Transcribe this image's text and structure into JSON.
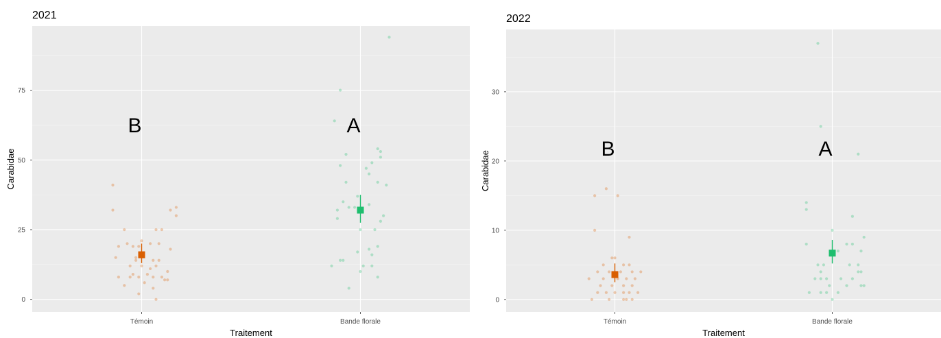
{
  "chart_data": [
    {
      "type": "scatter",
      "title": "2021",
      "xlabel": "Traitement",
      "ylabel": "Carabidae",
      "categories": [
        "Témoin",
        "Bande florale"
      ],
      "ylim": [
        -4.5,
        98
      ],
      "yticks": [
        0,
        25,
        50,
        75
      ],
      "grid": true,
      "series": [
        {
          "category": "Témoin",
          "color": "#d95f02",
          "mean": 16,
          "error": [
            13,
            20
          ],
          "significance": "B",
          "points": [
            {
              "x": -0.1,
              "y": 41
            },
            {
              "x": -0.1,
              "y": 32
            },
            {
              "x": -0.06,
              "y": 25
            },
            {
              "x": 0.05,
              "y": 25
            },
            {
              "x": 0.07,
              "y": 25
            },
            {
              "x": 0.1,
              "y": 32
            },
            {
              "x": 0.12,
              "y": 33
            },
            {
              "x": 0.12,
              "y": 30
            },
            {
              "x": -0.08,
              "y": 19
            },
            {
              "x": -0.05,
              "y": 20
            },
            {
              "x": -0.03,
              "y": 19
            },
            {
              "x": -0.01,
              "y": 19
            },
            {
              "x": 0.0,
              "y": 21
            },
            {
              "x": 0.03,
              "y": 20
            },
            {
              "x": 0.06,
              "y": 20
            },
            {
              "x": 0.1,
              "y": 18
            },
            {
              "x": -0.09,
              "y": 15
            },
            {
              "x": -0.02,
              "y": 15
            },
            {
              "x": 0.04,
              "y": 14
            },
            {
              "x": 0.06,
              "y": 14
            },
            {
              "x": -0.04,
              "y": 12
            },
            {
              "x": 0.0,
              "y": 12
            },
            {
              "x": 0.05,
              "y": 12
            },
            {
              "x": 0.09,
              "y": 10
            },
            {
              "x": -0.08,
              "y": 8
            },
            {
              "x": -0.03,
              "y": 9
            },
            {
              "x": -0.01,
              "y": 8
            },
            {
              "x": 0.02,
              "y": 9
            },
            {
              "x": 0.04,
              "y": 8
            },
            {
              "x": 0.07,
              "y": 8
            },
            {
              "x": 0.09,
              "y": 7
            },
            {
              "x": -0.06,
              "y": 5
            },
            {
              "x": 0.01,
              "y": 6
            },
            {
              "x": 0.04,
              "y": 4
            },
            {
              "x": -0.01,
              "y": 2
            },
            {
              "x": 0.05,
              "y": 0
            },
            {
              "x": -0.04,
              "y": 8
            },
            {
              "x": 0.03,
              "y": 11
            },
            {
              "x": -0.02,
              "y": 14
            },
            {
              "x": 0.08,
              "y": 7
            }
          ]
        },
        {
          "category": "Bande florale",
          "color": "#1ebe6e",
          "mean": 32,
          "error": [
            27.5,
            37.5
          ],
          "significance": "A",
          "points": [
            {
              "x": 0.1,
              "y": 94
            },
            {
              "x": -0.07,
              "y": 75
            },
            {
              "x": -0.09,
              "y": 64
            },
            {
              "x": 0.06,
              "y": 54
            },
            {
              "x": 0.07,
              "y": 53
            },
            {
              "x": -0.05,
              "y": 52
            },
            {
              "x": 0.07,
              "y": 51
            },
            {
              "x": 0.04,
              "y": 49
            },
            {
              "x": 0.02,
              "y": 47
            },
            {
              "x": -0.07,
              "y": 48
            },
            {
              "x": 0.03,
              "y": 45
            },
            {
              "x": -0.05,
              "y": 42
            },
            {
              "x": 0.06,
              "y": 42
            },
            {
              "x": 0.09,
              "y": 41
            },
            {
              "x": -0.01,
              "y": 37
            },
            {
              "x": 0.03,
              "y": 34
            },
            {
              "x": -0.06,
              "y": 35
            },
            {
              "x": -0.08,
              "y": 32
            },
            {
              "x": -0.02,
              "y": 33
            },
            {
              "x": -0.04,
              "y": 33
            },
            {
              "x": 0.08,
              "y": 30
            },
            {
              "x": 0.07,
              "y": 28
            },
            {
              "x": -0.08,
              "y": 29
            },
            {
              "x": 0.05,
              "y": 25
            },
            {
              "x": 0.0,
              "y": 25
            },
            {
              "x": 0.06,
              "y": 19
            },
            {
              "x": 0.03,
              "y": 18
            },
            {
              "x": -0.01,
              "y": 17
            },
            {
              "x": 0.04,
              "y": 16
            },
            {
              "x": -0.06,
              "y": 14
            },
            {
              "x": -0.07,
              "y": 14
            },
            {
              "x": -0.1,
              "y": 12
            },
            {
              "x": 0.01,
              "y": 12
            },
            {
              "x": 0.04,
              "y": 12
            },
            {
              "x": 0.0,
              "y": 10
            },
            {
              "x": 0.06,
              "y": 8
            },
            {
              "x": -0.04,
              "y": 4
            }
          ]
        }
      ]
    },
    {
      "type": "scatter",
      "title": "2022",
      "xlabel": "Traitement",
      "ylabel": "Carabidae",
      "categories": [
        "Témoin",
        "Bande florale"
      ],
      "ylim": [
        -1.8,
        39
      ],
      "yticks": [
        0,
        10,
        20,
        30
      ],
      "grid": true,
      "series": [
        {
          "category": "Témoin",
          "color": "#d95f02",
          "mean": 3.6,
          "error": [
            2.5,
            5.2
          ],
          "significance": "B",
          "points": [
            {
              "x": -0.03,
              "y": 16
            },
            {
              "x": -0.07,
              "y": 15
            },
            {
              "x": 0.01,
              "y": 15
            },
            {
              "x": -0.07,
              "y": 10
            },
            {
              "x": 0.05,
              "y": 9
            },
            {
              "x": -0.01,
              "y": 6
            },
            {
              "x": 0.0,
              "y": 6
            },
            {
              "x": -0.04,
              "y": 5
            },
            {
              "x": 0.03,
              "y": 5
            },
            {
              "x": 0.05,
              "y": 5
            },
            {
              "x": -0.06,
              "y": 4
            },
            {
              "x": -0.02,
              "y": 4
            },
            {
              "x": 0.02,
              "y": 4
            },
            {
              "x": 0.06,
              "y": 4
            },
            {
              "x": 0.09,
              "y": 4
            },
            {
              "x": -0.09,
              "y": 3
            },
            {
              "x": -0.04,
              "y": 3
            },
            {
              "x": 0.01,
              "y": 3
            },
            {
              "x": 0.04,
              "y": 3
            },
            {
              "x": 0.07,
              "y": 3
            },
            {
              "x": -0.05,
              "y": 2
            },
            {
              "x": -0.01,
              "y": 2
            },
            {
              "x": 0.03,
              "y": 2
            },
            {
              "x": 0.06,
              "y": 2
            },
            {
              "x": -0.06,
              "y": 1
            },
            {
              "x": -0.03,
              "y": 1
            },
            {
              "x": 0.0,
              "y": 1
            },
            {
              "x": 0.03,
              "y": 1
            },
            {
              "x": 0.05,
              "y": 1
            },
            {
              "x": 0.08,
              "y": 1
            },
            {
              "x": -0.08,
              "y": 0
            },
            {
              "x": -0.02,
              "y": 0
            },
            {
              "x": 0.03,
              "y": 0
            },
            {
              "x": 0.04,
              "y": 0
            },
            {
              "x": 0.06,
              "y": 0
            }
          ]
        },
        {
          "category": "Bande florale",
          "color": "#1ebe6e",
          "mean": 6.7,
          "error": [
            5.2,
            8.6
          ],
          "significance": "A",
          "points": [
            {
              "x": -0.05,
              "y": 37
            },
            {
              "x": -0.04,
              "y": 25
            },
            {
              "x": 0.09,
              "y": 21
            },
            {
              "x": -0.09,
              "y": 14
            },
            {
              "x": -0.09,
              "y": 13
            },
            {
              "x": 0.07,
              "y": 12
            },
            {
              "x": 0.0,
              "y": 10
            },
            {
              "x": 0.11,
              "y": 9
            },
            {
              "x": -0.09,
              "y": 8
            },
            {
              "x": 0.05,
              "y": 8
            },
            {
              "x": 0.07,
              "y": 8
            },
            {
              "x": 0.02,
              "y": 7
            },
            {
              "x": 0.1,
              "y": 7
            },
            {
              "x": -0.05,
              "y": 5
            },
            {
              "x": -0.03,
              "y": 5
            },
            {
              "x": 0.06,
              "y": 5
            },
            {
              "x": 0.09,
              "y": 5
            },
            {
              "x": -0.04,
              "y": 4
            },
            {
              "x": 0.1,
              "y": 4
            },
            {
              "x": 0.09,
              "y": 4
            },
            {
              "x": -0.06,
              "y": 3
            },
            {
              "x": -0.04,
              "y": 3
            },
            {
              "x": -0.02,
              "y": 3
            },
            {
              "x": 0.03,
              "y": 3
            },
            {
              "x": 0.07,
              "y": 3
            },
            {
              "x": -0.01,
              "y": 2
            },
            {
              "x": 0.05,
              "y": 2
            },
            {
              "x": 0.1,
              "y": 2
            },
            {
              "x": 0.11,
              "y": 2
            },
            {
              "x": -0.08,
              "y": 1
            },
            {
              "x": -0.04,
              "y": 1
            },
            {
              "x": -0.02,
              "y": 1
            },
            {
              "x": 0.02,
              "y": 1
            },
            {
              "x": 0.0,
              "y": 0
            }
          ]
        }
      ]
    }
  ]
}
